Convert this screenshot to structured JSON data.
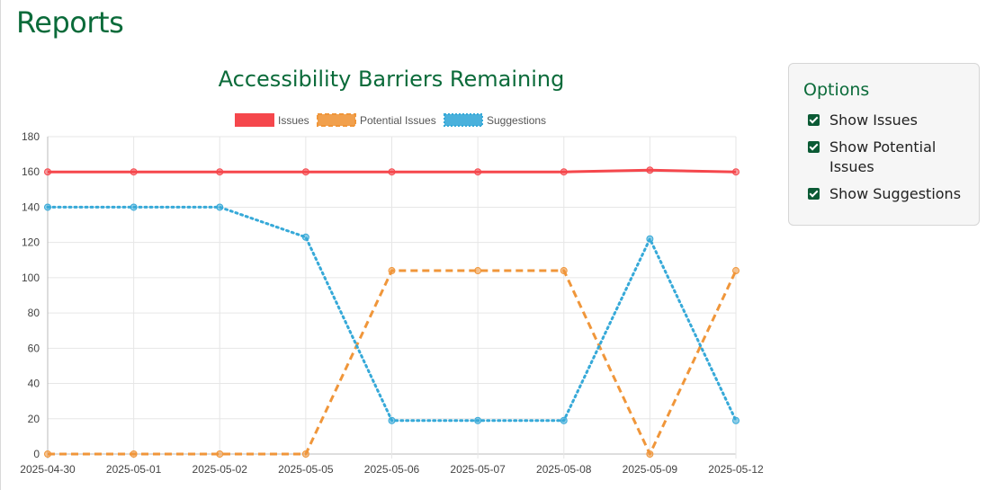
{
  "page": {
    "title": "Reports"
  },
  "options": {
    "title": "Options",
    "items": [
      {
        "label": "Show Issues",
        "checked": true
      },
      {
        "label": "Show Potential Issues",
        "checked": true
      },
      {
        "label": "Show Suggestions",
        "checked": true
      }
    ]
  },
  "chart_data": {
    "type": "line",
    "title": "Accessibility Barriers Remaining",
    "categories": [
      "2025-04-30",
      "2025-05-01",
      "2025-05-02",
      "2025-05-05",
      "2025-05-06",
      "2025-05-07",
      "2025-05-08",
      "2025-05-09",
      "2025-05-12"
    ],
    "series": [
      {
        "name": "Issues",
        "color": "#f5474c",
        "style": "solid",
        "values": [
          160,
          160,
          160,
          160,
          160,
          160,
          160,
          161,
          160
        ]
      },
      {
        "name": "Potential Issues",
        "color": "#f0963a",
        "style": "dashed",
        "values": [
          0,
          0,
          0,
          0,
          104,
          104,
          104,
          0,
          104
        ]
      },
      {
        "name": "Suggestions",
        "color": "#36a9d8",
        "style": "dotted",
        "values": [
          140,
          140,
          140,
          123,
          19,
          19,
          19,
          122,
          19
        ]
      }
    ],
    "ylim": [
      0,
      180
    ],
    "yticks": [
      0,
      20,
      40,
      60,
      80,
      100,
      120,
      140,
      160,
      180
    ],
    "grid": true,
    "legend": "top"
  }
}
